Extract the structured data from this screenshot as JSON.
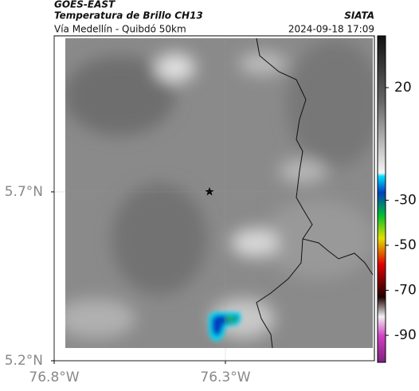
{
  "header": {
    "satellite": "GOES-EAST",
    "product": "Temperatura de Brillo CH13",
    "org": "SIATA",
    "region": "Vía Medellín - Quibdó 50km",
    "datetime": "2024-09-18 17:09"
  },
  "map": {
    "xlim": [
      -76.8,
      -75.865
    ],
    "ylim": [
      5.2,
      6.162
    ],
    "xticks": [
      {
        "value": -76.8,
        "label": "76.8°W"
      },
      {
        "value": -76.3,
        "label": "76.3°W"
      }
    ],
    "yticks": [
      {
        "value": 5.7,
        "label": "5.7°N"
      },
      {
        "value": 5.2,
        "label": "5.2°N"
      }
    ],
    "grid": true
  },
  "colorbar": {
    "clim": [
      -102,
      43
    ],
    "ticks": [
      20,
      -30,
      -50,
      -70,
      -90
    ]
  }
}
